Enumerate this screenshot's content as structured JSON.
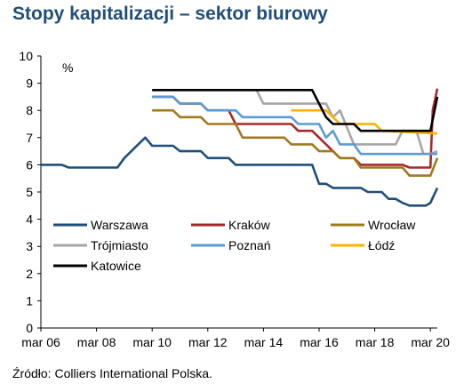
{
  "page": {
    "title": "Stopy kapitalizacji – sektor biurowy",
    "source": "Źródło: Colliers International Polska."
  },
  "chart_data": {
    "type": "line",
    "title": "Stopy kapitalizacji – sektor biurowy",
    "ylabel": "%",
    "xlabel": "",
    "ylim": [
      0,
      10
    ],
    "xlim": [
      "2006-03",
      "2020-06"
    ],
    "y_ticks": [
      0,
      1,
      2,
      3,
      4,
      5,
      6,
      7,
      8,
      9,
      10
    ],
    "x_ticks": [
      {
        "x": "2006-03",
        "label": "mar 06"
      },
      {
        "x": "2008-03",
        "label": "mar 08"
      },
      {
        "x": "2010-03",
        "label": "mar 10"
      },
      {
        "x": "2012-03",
        "label": "mar 12"
      },
      {
        "x": "2014-03",
        "label": "mar 14"
      },
      {
        "x": "2016-03",
        "label": "mar 16"
      },
      {
        "x": "2018-03",
        "label": "mar 18"
      },
      {
        "x": "2020-03",
        "label": "mar 20"
      }
    ],
    "grid": false,
    "legend": "inside-bottom",
    "series": [
      {
        "name": "Warszawa",
        "color": "#1f4e79",
        "points": [
          [
            "2006-03",
            6.0
          ],
          [
            "2006-12",
            6.0
          ],
          [
            "2007-03",
            5.9
          ],
          [
            "2008-03",
            5.9
          ],
          [
            "2008-12",
            5.9
          ],
          [
            "2009-03",
            6.25
          ],
          [
            "2009-09",
            6.75
          ],
          [
            "2009-12",
            7.0
          ],
          [
            "2010-03",
            6.7
          ],
          [
            "2010-12",
            6.7
          ],
          [
            "2011-03",
            6.5
          ],
          [
            "2011-12",
            6.5
          ],
          [
            "2012-03",
            6.25
          ],
          [
            "2012-12",
            6.25
          ],
          [
            "2013-03",
            6.0
          ],
          [
            "2015-12",
            6.0
          ],
          [
            "2016-03",
            5.3
          ],
          [
            "2016-06",
            5.3
          ],
          [
            "2016-09",
            5.15
          ],
          [
            "2017-09",
            5.15
          ],
          [
            "2017-12",
            5.0
          ],
          [
            "2018-06",
            5.0
          ],
          [
            "2018-09",
            4.75
          ],
          [
            "2018-12",
            4.75
          ],
          [
            "2019-03",
            4.6
          ],
          [
            "2019-06",
            4.5
          ],
          [
            "2020-01",
            4.5
          ],
          [
            "2020-03",
            4.6
          ],
          [
            "2020-06",
            5.15
          ]
        ]
      },
      {
        "name": "Kraków",
        "color": "#a52a2a",
        "points": [
          [
            "2010-03",
            8.5
          ],
          [
            "2010-12",
            8.5
          ],
          [
            "2011-03",
            8.25
          ],
          [
            "2011-12",
            8.25
          ],
          [
            "2012-03",
            8.0
          ],
          [
            "2012-12",
            8.0
          ],
          [
            "2013-03",
            7.5
          ],
          [
            "2015-03",
            7.5
          ],
          [
            "2015-06",
            7.25
          ],
          [
            "2015-12",
            7.25
          ],
          [
            "2016-03",
            7.0
          ],
          [
            "2016-06",
            6.75
          ],
          [
            "2016-09",
            6.5
          ],
          [
            "2016-12",
            6.25
          ],
          [
            "2017-06",
            6.25
          ],
          [
            "2017-09",
            6.0
          ],
          [
            "2019-03",
            6.0
          ],
          [
            "2019-06",
            5.9
          ],
          [
            "2020-03",
            5.9
          ],
          [
            "2020-04",
            8.0
          ],
          [
            "2020-06",
            8.8
          ]
        ]
      },
      {
        "name": "Wrocław",
        "color": "#a0791e",
        "points": [
          [
            "2010-03",
            8.0
          ],
          [
            "2010-12",
            8.0
          ],
          [
            "2011-03",
            7.75
          ],
          [
            "2011-12",
            7.75
          ],
          [
            "2012-03",
            7.5
          ],
          [
            "2013-03",
            7.5
          ],
          [
            "2013-06",
            7.0
          ],
          [
            "2014-12",
            7.0
          ],
          [
            "2015-03",
            6.75
          ],
          [
            "2015-12",
            6.75
          ],
          [
            "2016-03",
            6.5
          ],
          [
            "2016-09",
            6.5
          ],
          [
            "2016-12",
            6.25
          ],
          [
            "2017-06",
            6.25
          ],
          [
            "2017-09",
            5.9
          ],
          [
            "2019-03",
            5.9
          ],
          [
            "2019-06",
            5.6
          ],
          [
            "2020-03",
            5.6
          ],
          [
            "2020-06",
            6.25
          ]
        ]
      },
      {
        "name": "Trójmiasto",
        "color": "#a6a6a6",
        "points": [
          [
            "2010-03",
            8.75
          ],
          [
            "2013-12",
            8.75
          ],
          [
            "2014-03",
            8.25
          ],
          [
            "2016-06",
            8.25
          ],
          [
            "2016-09",
            7.75
          ],
          [
            "2016-12",
            8.0
          ],
          [
            "2017-06",
            6.75
          ],
          [
            "2018-12",
            6.75
          ],
          [
            "2019-03",
            7.25
          ],
          [
            "2019-09",
            7.25
          ],
          [
            "2019-12",
            6.4
          ],
          [
            "2020-03",
            6.4
          ],
          [
            "2020-06",
            6.5
          ]
        ]
      },
      {
        "name": "Poznań",
        "color": "#5b9bd5",
        "points": [
          [
            "2010-03",
            8.5
          ],
          [
            "2010-12",
            8.5
          ],
          [
            "2011-03",
            8.25
          ],
          [
            "2011-12",
            8.25
          ],
          [
            "2012-03",
            8.0
          ],
          [
            "2013-03",
            8.0
          ],
          [
            "2013-06",
            7.75
          ],
          [
            "2015-03",
            7.75
          ],
          [
            "2015-06",
            7.5
          ],
          [
            "2016-03",
            7.5
          ],
          [
            "2016-06",
            7.0
          ],
          [
            "2016-09",
            7.25
          ],
          [
            "2016-12",
            6.75
          ],
          [
            "2017-06",
            6.75
          ],
          [
            "2017-09",
            6.4
          ],
          [
            "2020-06",
            6.4
          ]
        ]
      },
      {
        "name": "Łódź",
        "color": "#ffb000",
        "points": [
          [
            "2015-03",
            8.0
          ],
          [
            "2016-06",
            8.0
          ],
          [
            "2016-09",
            7.75
          ],
          [
            "2016-12",
            7.5
          ],
          [
            "2018-03",
            7.5
          ],
          [
            "2018-06",
            7.25
          ],
          [
            "2020-06",
            7.15
          ]
        ]
      },
      {
        "name": "Katowice",
        "color": "#000000",
        "points": [
          [
            "2010-03",
            8.75
          ],
          [
            "2015-12",
            8.75
          ],
          [
            "2016-03",
            8.25
          ],
          [
            "2016-06",
            7.75
          ],
          [
            "2016-09",
            7.5
          ],
          [
            "2017-06",
            7.5
          ],
          [
            "2017-09",
            7.25
          ],
          [
            "2019-06",
            7.25
          ],
          [
            "2020-03",
            7.25
          ],
          [
            "2020-06",
            8.5
          ]
        ]
      }
    ]
  }
}
